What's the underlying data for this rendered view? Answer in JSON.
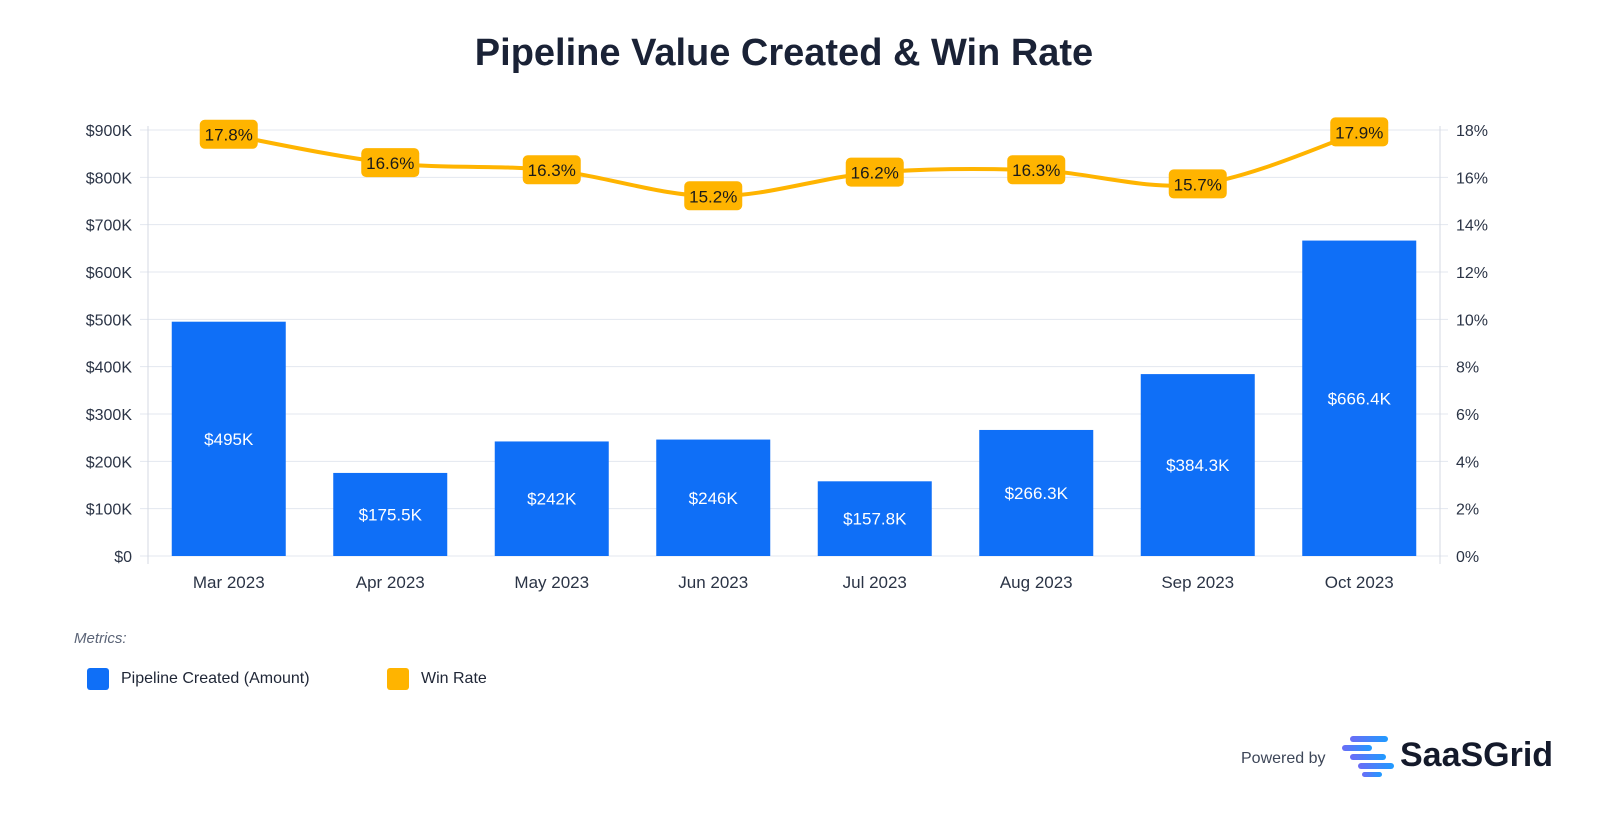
{
  "chart_data": {
    "type": "bar+line",
    "title": "Pipeline Value Created & Win Rate",
    "categories": [
      "Mar 2023",
      "Apr 2023",
      "May 2023",
      "Jun 2023",
      "Jul 2023",
      "Aug 2023",
      "Sep 2023",
      "Oct 2023"
    ],
    "series": [
      {
        "name": "Pipeline Created (Amount)",
        "type": "bar",
        "axis": "left",
        "color": "#0f6ff7",
        "values": [
          495000,
          175500,
          242000,
          246000,
          157800,
          266300,
          384300,
          666400
        ],
        "labels": [
          "$495K",
          "$175.5K",
          "$242K",
          "$246K",
          "$157.8K",
          "$266.3K",
          "$384.3K",
          "$666.4K"
        ]
      },
      {
        "name": "Win Rate",
        "type": "line",
        "axis": "right",
        "color": "#ffb400",
        "values": [
          17.8,
          16.6,
          16.3,
          15.2,
          16.2,
          16.3,
          15.7,
          17.9
        ],
        "labels": [
          "17.8%",
          "16.6%",
          "16.3%",
          "15.2%",
          "16.2%",
          "16.3%",
          "15.7%",
          "17.9%"
        ]
      }
    ],
    "y_left": {
      "range": [
        0,
        900000
      ],
      "ticks": [
        "$0",
        "$100K",
        "$200K",
        "$300K",
        "$400K",
        "$500K",
        "$600K",
        "$700K",
        "$800K",
        "$900K"
      ]
    },
    "y_right": {
      "range": [
        0,
        18
      ],
      "ticks": [
        "0%",
        "2%",
        "4%",
        "6%",
        "8%",
        "10%",
        "12%",
        "14%",
        "16%",
        "18%"
      ]
    },
    "grid": true,
    "legend_title": "Metrics:",
    "legend_position": "bottom-left"
  },
  "footer": {
    "powered_by": "Powered by",
    "brand": "SaaSGrid"
  }
}
